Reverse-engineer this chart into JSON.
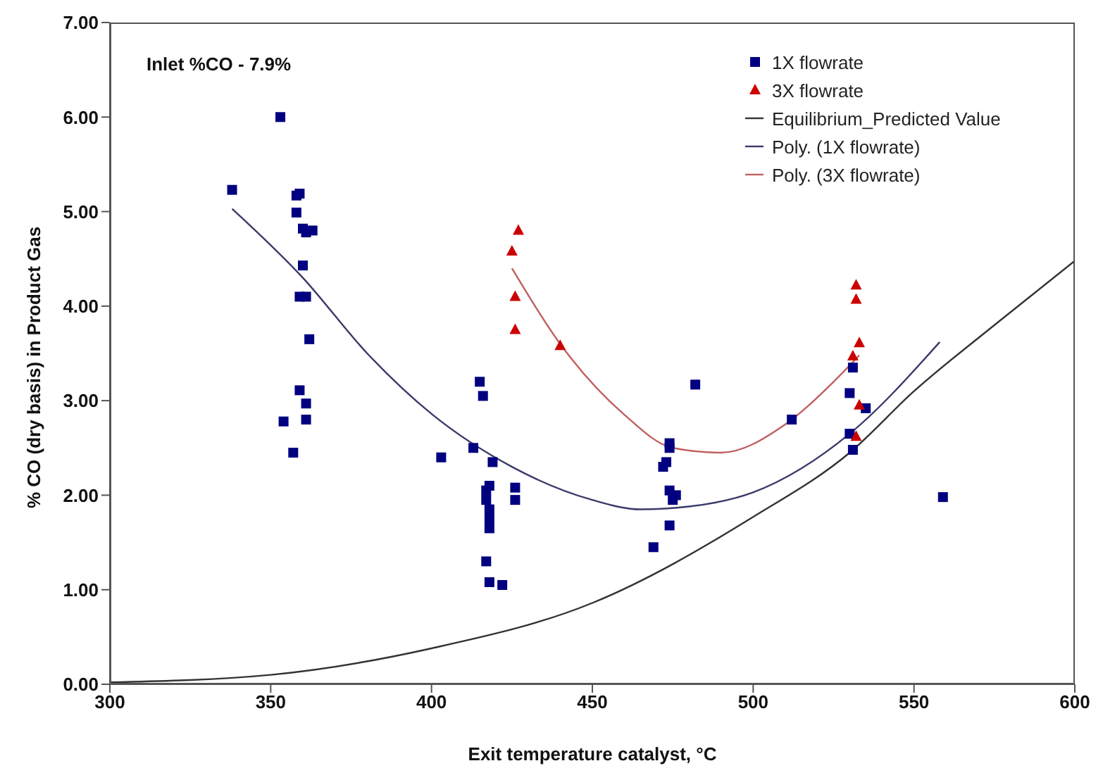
{
  "chart_data": {
    "type": "scatter",
    "xlabel": "Exit temperature catalyst, °C",
    "ylabel": "% CO (dry basis) in Product Gas",
    "annotations": [
      "Inlet %CO - 7.9%"
    ],
    "xlim": [
      300,
      600
    ],
    "xticks": [
      300,
      350,
      400,
      450,
      500,
      550,
      600
    ],
    "ylim": [
      0,
      7
    ],
    "yticks": [
      {
        "value": 0,
        "label": "0.00"
      },
      {
        "value": 1,
        "label": "1.00"
      },
      {
        "value": 2,
        "label": "2.00"
      },
      {
        "value": 3,
        "label": "3.00"
      },
      {
        "value": 4,
        "label": "4.00"
      },
      {
        "value": 5,
        "label": "5.00"
      },
      {
        "value": 6,
        "label": "6.00"
      },
      {
        "value": 7,
        "label": "7.00"
      }
    ],
    "grid": false,
    "legend": "top right",
    "series": [
      {
        "name": "1X flowrate",
        "marker": "square",
        "color": "#000080",
        "x": [
          338,
          353,
          354,
          357,
          358,
          359,
          358,
          360,
          361,
          363,
          360,
          359,
          361,
          362,
          359,
          361,
          361,
          403,
          413,
          415,
          416,
          417,
          418,
          419,
          417,
          418,
          418,
          418,
          417,
          418,
          422,
          426,
          426,
          472,
          473,
          474,
          474,
          474,
          475,
          476,
          474,
          469,
          482,
          512,
          530,
          530,
          531,
          531,
          535,
          559
        ],
        "values": [
          5.23,
          6.0,
          2.78,
          2.45,
          5.17,
          5.19,
          4.99,
          4.82,
          4.78,
          4.8,
          4.43,
          4.1,
          4.1,
          3.65,
          3.11,
          2.97,
          2.8,
          2.4,
          2.5,
          3.2,
          3.05,
          2.05,
          2.1,
          2.35,
          1.95,
          1.85,
          1.75,
          1.65,
          1.3,
          1.08,
          1.05,
          2.08,
          1.95,
          2.3,
          2.35,
          2.5,
          2.55,
          2.05,
          1.95,
          2.0,
          1.68,
          1.45,
          3.17,
          2.8,
          2.65,
          3.08,
          3.35,
          2.48,
          2.92,
          1.98
        ]
      },
      {
        "name": "3X flowrate",
        "marker": "triangle",
        "color": "#cc0000",
        "x": [
          425,
          427,
          426,
          426,
          440,
          532,
          532,
          533,
          531,
          533,
          532
        ],
        "values": [
          4.58,
          4.8,
          4.1,
          3.75,
          3.58,
          4.22,
          4.07,
          3.61,
          3.47,
          2.95,
          2.62
        ]
      },
      {
        "name": "Equilibrium_Predicted Value",
        "type": "line",
        "marker": "none",
        "color": "#333333",
        "x": [
          300,
          350,
          400,
          450,
          500,
          530,
          550,
          575,
          600
        ],
        "values": [
          0.02,
          0.1,
          0.38,
          0.86,
          1.77,
          2.45,
          3.1,
          3.8,
          4.48
        ]
      },
      {
        "name": "Poly. (1X flowrate)",
        "type": "line",
        "marker": "none",
        "color": "#3a3a6a",
        "x": [
          338,
          360,
          380,
          400,
          425,
          450,
          465,
          480,
          500,
          530,
          558
        ],
        "values": [
          5.03,
          4.3,
          3.5,
          2.86,
          2.3,
          1.95,
          1.85,
          1.88,
          2.03,
          2.65,
          3.62
        ]
      },
      {
        "name": "Poly. (3X flowrate)",
        "type": "line",
        "marker": "none",
        "color": "#c06060",
        "x": [
          425,
          440,
          460,
          475,
          490,
          510,
          525,
          533
        ],
        "values": [
          4.4,
          3.6,
          2.85,
          2.5,
          2.45,
          2.75,
          3.2,
          3.48
        ]
      }
    ]
  }
}
